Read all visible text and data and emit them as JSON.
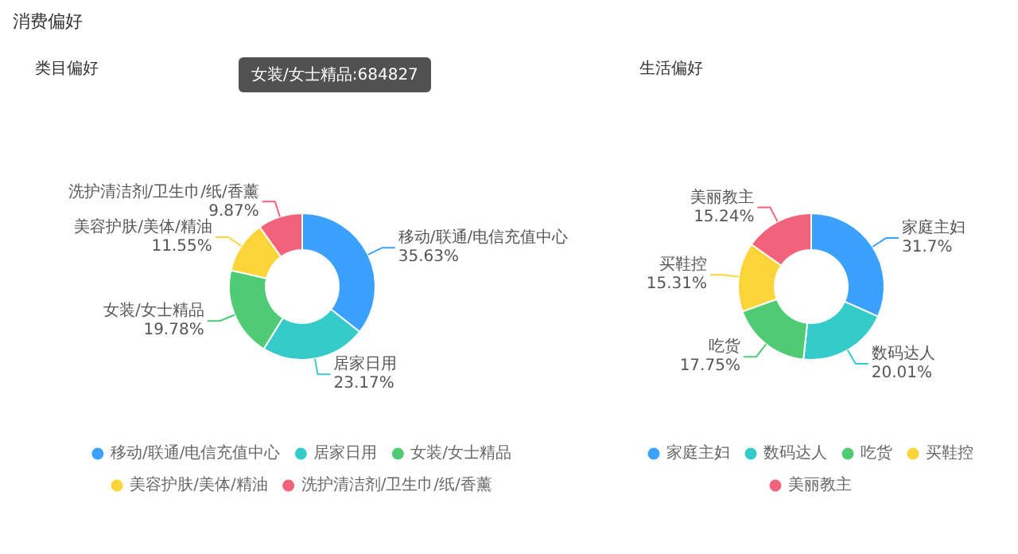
{
  "chart_data": [
    {
      "type": "donut",
      "title": "消费偏好",
      "subtitle": "类目偏好",
      "categories": [
        "移动/联通/电信充值中心",
        "居家日用",
        "女装/女士精品",
        "美容护肤/美体/精油",
        "洗护清洁剂/卫生巾/纸/香薰"
      ],
      "values": [
        35.63,
        23.17,
        19.78,
        11.55,
        9.87
      ],
      "colors": [
        "#3ba1ff",
        "#36cbcb",
        "#4ecb73",
        "#fbd437",
        "#f2637b"
      ],
      "value_labels": [
        "35.63%",
        "23.17%",
        "19.78%",
        "11.55%",
        "9.87%"
      ],
      "legend": "bottom",
      "annotations": [
        "女装/女士精品:684827"
      ]
    },
    {
      "type": "donut",
      "title": "生活偏好",
      "categories": [
        "家庭主妇",
        "数码达人",
        "吃货",
        "买鞋控",
        "美丽教主"
      ],
      "values": [
        31.7,
        20.01,
        17.75,
        15.31,
        15.24
      ],
      "colors": [
        "#3ba1ff",
        "#36cbcb",
        "#4ecb73",
        "#fbd437",
        "#f2637b"
      ],
      "value_labels": [
        "31.7%",
        "20.01%",
        "17.75%",
        "15.31%",
        "15.24%"
      ],
      "legend": "bottom"
    }
  ]
}
